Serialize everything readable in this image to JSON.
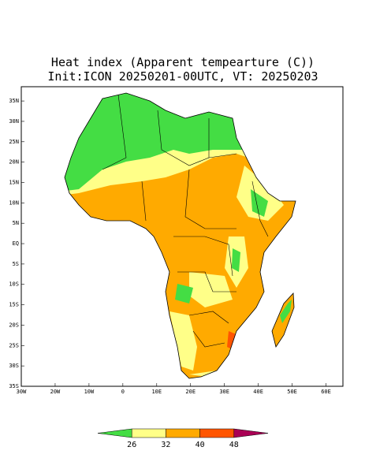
{
  "map": {
    "title": "Heat index (Apparent tempearture (C))",
    "subtitle": "Init:ICON 20250201-00UTC, VT: 20250203",
    "xlim": [
      -30,
      65
    ],
    "ylim": [
      -35,
      38.5
    ],
    "xticks": [
      {
        "value": -30,
        "label": "30W"
      },
      {
        "value": -20,
        "label": "20W"
      },
      {
        "value": -10,
        "label": "10W"
      },
      0,
      {
        "value": 10,
        "label": "10E"
      },
      {
        "value": 20,
        "label": "20E"
      },
      {
        "value": 30,
        "label": "30E"
      },
      {
        "value": 40,
        "label": "40E"
      },
      {
        "value": 50,
        "label": "50E"
      },
      {
        "value": 60,
        "label": "60E"
      }
    ],
    "yticks": [
      {
        "value": 35,
        "label": "35N"
      },
      {
        "value": 30,
        "label": "30N"
      },
      {
        "value": 25,
        "label": "25N"
      },
      {
        "value": 20,
        "label": "20N"
      },
      {
        "value": 15,
        "label": "15N"
      },
      {
        "value": 10,
        "label": "10N"
      },
      {
        "value": 5,
        "label": "5N"
      },
      {
        "value": 0,
        "label": "EQ"
      },
      {
        "value": -5,
        "label": "5S"
      },
      {
        "value": -10,
        "label": "10S"
      },
      {
        "value": -15,
        "label": "15S"
      },
      {
        "value": -20,
        "label": "20S"
      },
      {
        "value": -25,
        "label": "25S"
      },
      {
        "value": -30,
        "label": "30S"
      },
      {
        "value": -35,
        "label": "35S"
      }
    ],
    "colorbar": {
      "levels": [
        26,
        32,
        40,
        48
      ],
      "colors": [
        "#44dd44",
        "#ffff88",
        "#ffaa00",
        "#ff5500",
        "#aa0055"
      ]
    }
  }
}
